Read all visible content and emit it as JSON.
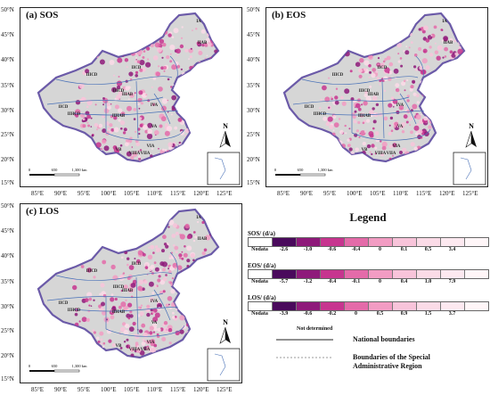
{
  "panels": [
    {
      "label": "(a) SOS",
      "lat_ticks": [
        "50°N",
        "45°N",
        "40°N",
        "35°N",
        "30°N",
        "25°N",
        "20°N",
        "15°N"
      ],
      "lon_ticks": [
        "85°E",
        "90°E",
        "95°E",
        "100°E",
        "105°E",
        "110°E",
        "115°E",
        "120°E",
        "125°E"
      ],
      "scale_ticks": [
        "0",
        "650",
        "1,300 km"
      ],
      "regions": [
        "IA",
        "IIAB",
        "IICD",
        "IIICD",
        "IICD",
        "IIIAB",
        "IIICD",
        "IIHCD",
        "IIHAB",
        "IVA",
        "VA",
        "VIA",
        "VIIA",
        "VIIIA",
        "VB"
      ]
    },
    {
      "label": "(b) EOS",
      "lat_ticks": [
        "50°N",
        "45°N",
        "40°N",
        "35°N",
        "30°N",
        "25°N",
        "20°N",
        "15°N"
      ],
      "lon_ticks": [
        "85°E",
        "90°E",
        "95°E",
        "100°E",
        "105°E",
        "110°E",
        "115°E",
        "120°E",
        "125°E"
      ],
      "scale_ticks": [
        "0",
        "650",
        "1,300 km"
      ],
      "regions": [
        "IA",
        "IIAB",
        "IICD",
        "IIICD",
        "IICD",
        "IIIAB",
        "IIICD",
        "IIHCD",
        "IIHAB",
        "IVA",
        "VA",
        "VIA",
        "VIIA",
        "VIIIA",
        "VB"
      ]
    },
    {
      "label": "(c) LOS",
      "lat_ticks": [
        "50°N",
        "45°N",
        "40°N",
        "35°N",
        "30°N",
        "25°N",
        "20°N",
        "15°N"
      ],
      "lon_ticks": [
        "85°E",
        "90°E",
        "95°E",
        "100°E",
        "105°E",
        "110°E",
        "115°E",
        "120°E",
        "125°E"
      ],
      "scale_ticks": [
        "0",
        "650",
        "1,300 km"
      ],
      "regions": [
        "IA",
        "IIAB",
        "IICD",
        "IIICD",
        "IICD",
        "IIIAB",
        "IIICD",
        "IIHCD",
        "IIHAB",
        "IVA",
        "VA",
        "VIA",
        "VIIA",
        "VIIIA",
        "VB"
      ]
    }
  ],
  "north_arrow": "N",
  "legend": {
    "title": "Legend",
    "sos": {
      "heading": "SOS/ (d/a)",
      "ticks": [
        "Nodata",
        "-2.6",
        "-1.0",
        "-0.6",
        "-0.4",
        "0",
        "0.1",
        "0.5",
        "3.4"
      ]
    },
    "eos": {
      "heading": "EOS/ (d/a)",
      "ticks": [
        "Nodata",
        "-5.7",
        "-1.2",
        "-0.4",
        "-0.1",
        "0",
        "0.4",
        "1.0",
        "7.9"
      ]
    },
    "los": {
      "heading": "LOS/ (d/a)",
      "ticks": [
        "Nodata",
        "-3.9",
        "-0.6",
        "-0.2",
        "0",
        "0.5",
        "0.9",
        "1.5",
        "3.7"
      ]
    },
    "colors": [
      "#4a0a5c",
      "#8e1a7a",
      "#c7358f",
      "#e46ba9",
      "#f29cc3",
      "#f8c4da",
      "#fbdbe7",
      "#fde9f0",
      "#fff6f8"
    ],
    "not_determined": "Not determined",
    "national_boundaries": "National boundaries",
    "sar_boundaries_line1": "Boundaries of the Special",
    "sar_boundaries_line2": "Administrative Region"
  }
}
